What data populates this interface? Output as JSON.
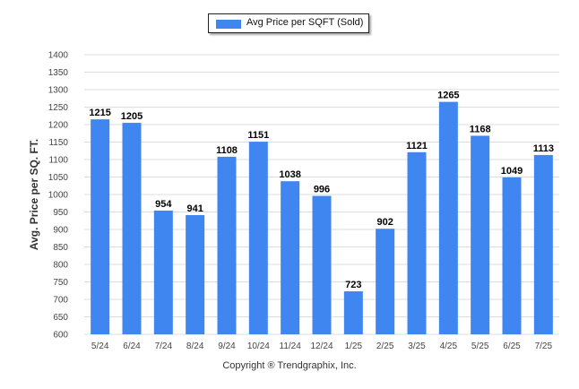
{
  "colors": {
    "bar": "#3f86f0",
    "grid": "#dcdcdc",
    "axis_text": "#444444",
    "label_text": "#000000"
  },
  "legend": {
    "label": "Avg Price per SQFT (Sold)"
  },
  "footer": {
    "copyright": "Copyright ® Trendgraphix, Inc."
  },
  "chart_data": {
    "type": "bar",
    "title": "",
    "xlabel": "",
    "ylabel": "Avg. Price per SQ. FT.",
    "ylim": [
      600,
      1400
    ],
    "yticks": [
      600,
      650,
      700,
      750,
      800,
      850,
      900,
      950,
      1000,
      1050,
      1100,
      1150,
      1200,
      1250,
      1300,
      1350,
      1400
    ],
    "grid": true,
    "legend_position": "top-center",
    "categories": [
      "5/24",
      "6/24",
      "7/24",
      "8/24",
      "9/24",
      "10/24",
      "11/24",
      "12/24",
      "1/25",
      "2/25",
      "3/25",
      "4/25",
      "5/25",
      "6/25",
      "7/25"
    ],
    "series": [
      {
        "name": "Avg Price per SQFT (Sold)",
        "values": [
          1215,
          1205,
          954,
          941,
          1108,
          1151,
          1038,
          996,
          723,
          902,
          1121,
          1265,
          1168,
          1049,
          1113
        ]
      }
    ]
  }
}
